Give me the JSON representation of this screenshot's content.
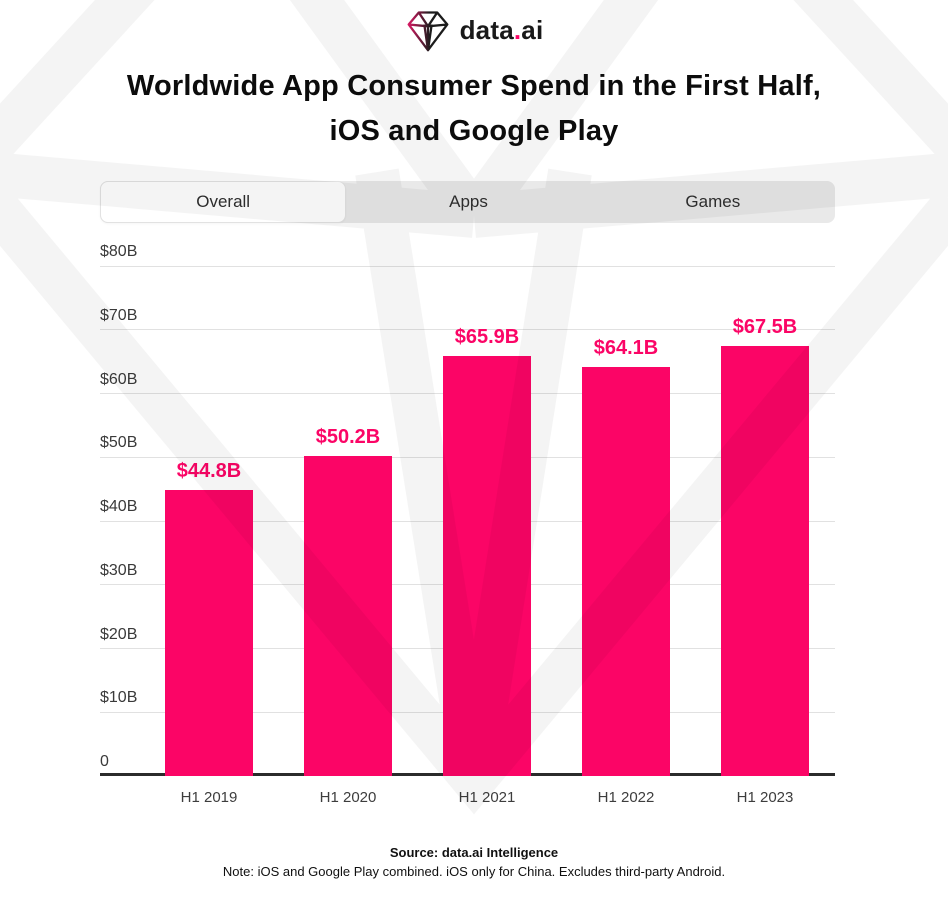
{
  "logo": {
    "brand_prefix": "data",
    "brand_dot": ".",
    "brand_suffix": "ai"
  },
  "title": {
    "line1": "Worldwide App Consumer Spend in the First Half,",
    "line2": "iOS and Google Play"
  },
  "tabs": [
    {
      "label": "Overall",
      "active": true
    },
    {
      "label": "Apps",
      "active": false
    },
    {
      "label": "Games",
      "active": false
    }
  ],
  "chart_data": {
    "type": "bar",
    "title": "Worldwide App Consumer Spend in the First Half, iOS and Google Play",
    "categories": [
      "H1 2019",
      "H1 2020",
      "H1 2021",
      "H1 2022",
      "H1 2023"
    ],
    "values": [
      44.8,
      50.2,
      65.9,
      64.1,
      67.5
    ],
    "value_labels": [
      "$44.8B",
      "$50.2B",
      "$65.9B",
      "$64.1B",
      "$67.5B"
    ],
    "unit": "USD billions",
    "xlabel": "",
    "ylabel": "",
    "ylim": [
      0,
      80
    ],
    "y_ticks": [
      {
        "value": 80,
        "label": "$80B"
      },
      {
        "value": 70,
        "label": "$70B"
      },
      {
        "value": 60,
        "label": "$60B"
      },
      {
        "value": 50,
        "label": "$50B"
      },
      {
        "value": 40,
        "label": "$40B"
      },
      {
        "value": 30,
        "label": "$30B"
      },
      {
        "value": 20,
        "label": "$20B"
      },
      {
        "value": 10,
        "label": "$10B"
      },
      {
        "value": 0,
        "label": "0"
      }
    ],
    "grid": true,
    "legend": false,
    "bar_color": "#FB0566",
    "label_color": "#FB0566"
  },
  "footer": {
    "source": "Source: data.ai Intelligence",
    "note": "Note: iOS and Google Play combined. iOS only for China. Excludes third-party Android."
  },
  "colors": {
    "accent_pink": "#FB0566",
    "tab_bg": "#e9e9e9",
    "grid_line": "#e1e1e1",
    "axis_line": "#2b2b2b",
    "watermark": "rgba(0,0,0,0.043)"
  }
}
